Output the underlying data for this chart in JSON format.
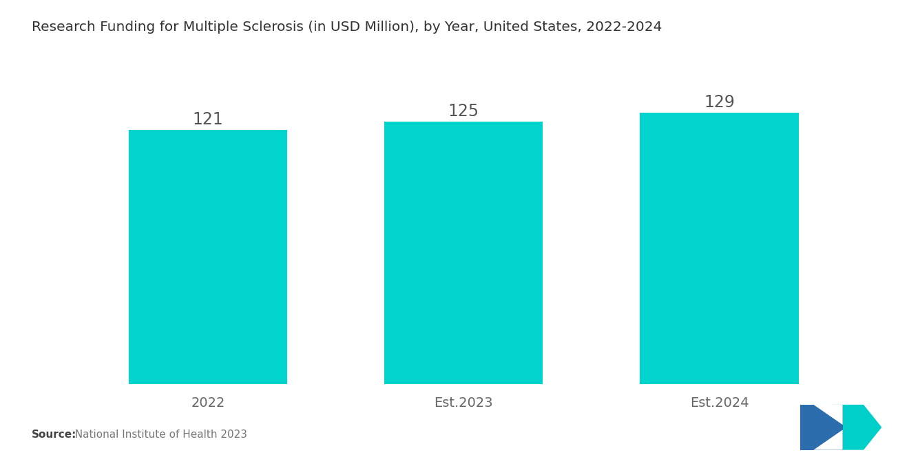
{
  "title": "Research Funding for Multiple Sclerosis (in USD Million), by Year, United States, 2022-2024",
  "categories": [
    "2022",
    "Est.2023",
    "Est.2024"
  ],
  "values": [
    121,
    125,
    129
  ],
  "bar_color": "#00D4CC",
  "background_color": "#ffffff",
  "title_fontsize": 14.5,
  "source_bold": "Source:",
  "source_rest": "  National Institute of Health 2023",
  "ylim": [
    0,
    148
  ],
  "bar_width": 0.62,
  "value_label_fontsize": 17,
  "xtick_fontsize": 14,
  "logo_blue": "#2B6DAD",
  "logo_teal": "#00CEC9"
}
